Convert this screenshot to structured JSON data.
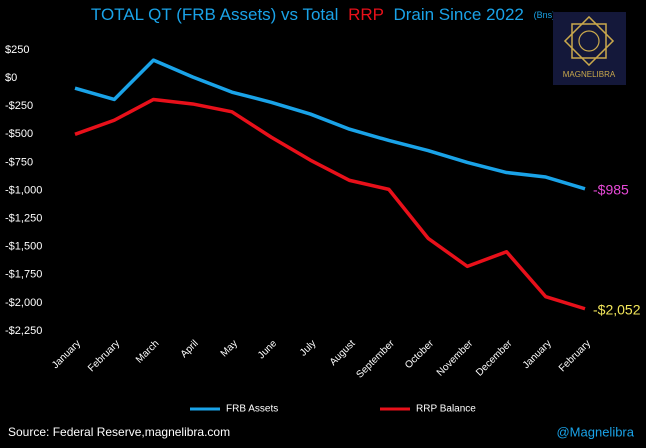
{
  "chart_data": {
    "type": "line",
    "title": [
      "TOTAL QT (FRB Assets) vs Total",
      "RRP",
      "Drain Since 2022",
      "(Bns)"
    ],
    "logo": "MAGNELIBRA",
    "source": "Source: Federal Reserve,magnelibra.com",
    "handle": "@Magnelibra",
    "categories": [
      "January",
      "February",
      "March",
      "April",
      "May",
      "June",
      "July",
      "August",
      "September",
      "October",
      "November",
      "December",
      "January",
      "February"
    ],
    "series": [
      {
        "name": "FRB Assets",
        "color": "#1aa3e8",
        "label_color": "#e84ad8",
        "values": [
          -90,
          -190,
          160,
          10,
          -125,
          -215,
          -320,
          -455,
          -555,
          -645,
          -750,
          -840,
          -880,
          -985
        ],
        "value_labels": [
          null,
          null,
          null,
          null,
          null,
          null,
          null,
          null,
          null,
          null,
          null,
          null,
          null,
          "-$985"
        ]
      },
      {
        "name": "RRP Balance",
        "color": "#e8101a",
        "label_color": "#f2e65a",
        "values": [
          -500,
          -375,
          -190,
          -230,
          -300,
          -525,
          -730,
          -910,
          -990,
          -1425,
          -1675,
          -1545,
          -1945,
          -2052
        ],
        "value_labels": [
          null,
          null,
          null,
          null,
          null,
          null,
          null,
          null,
          null,
          null,
          null,
          null,
          null,
          "-$2,052"
        ]
      }
    ],
    "ylim": [
      250,
      -2250
    ],
    "yticks": [
      {
        "value": 250,
        "label": "$250"
      },
      {
        "value": 0,
        "label": "$0"
      },
      {
        "value": -250,
        "label": "-$250"
      },
      {
        "value": -500,
        "label": "-$500"
      },
      {
        "value": -750,
        "label": "-$750"
      },
      {
        "value": -1000,
        "label": "-$1,000"
      },
      {
        "value": -1250,
        "label": "-$1,250"
      },
      {
        "value": -1500,
        "label": "-$1,500"
      },
      {
        "value": -1750,
        "label": "-$1,750"
      },
      {
        "value": -2000,
        "label": "-$2,000"
      },
      {
        "value": -2250,
        "label": "-$2,250"
      }
    ],
    "grid": false
  }
}
